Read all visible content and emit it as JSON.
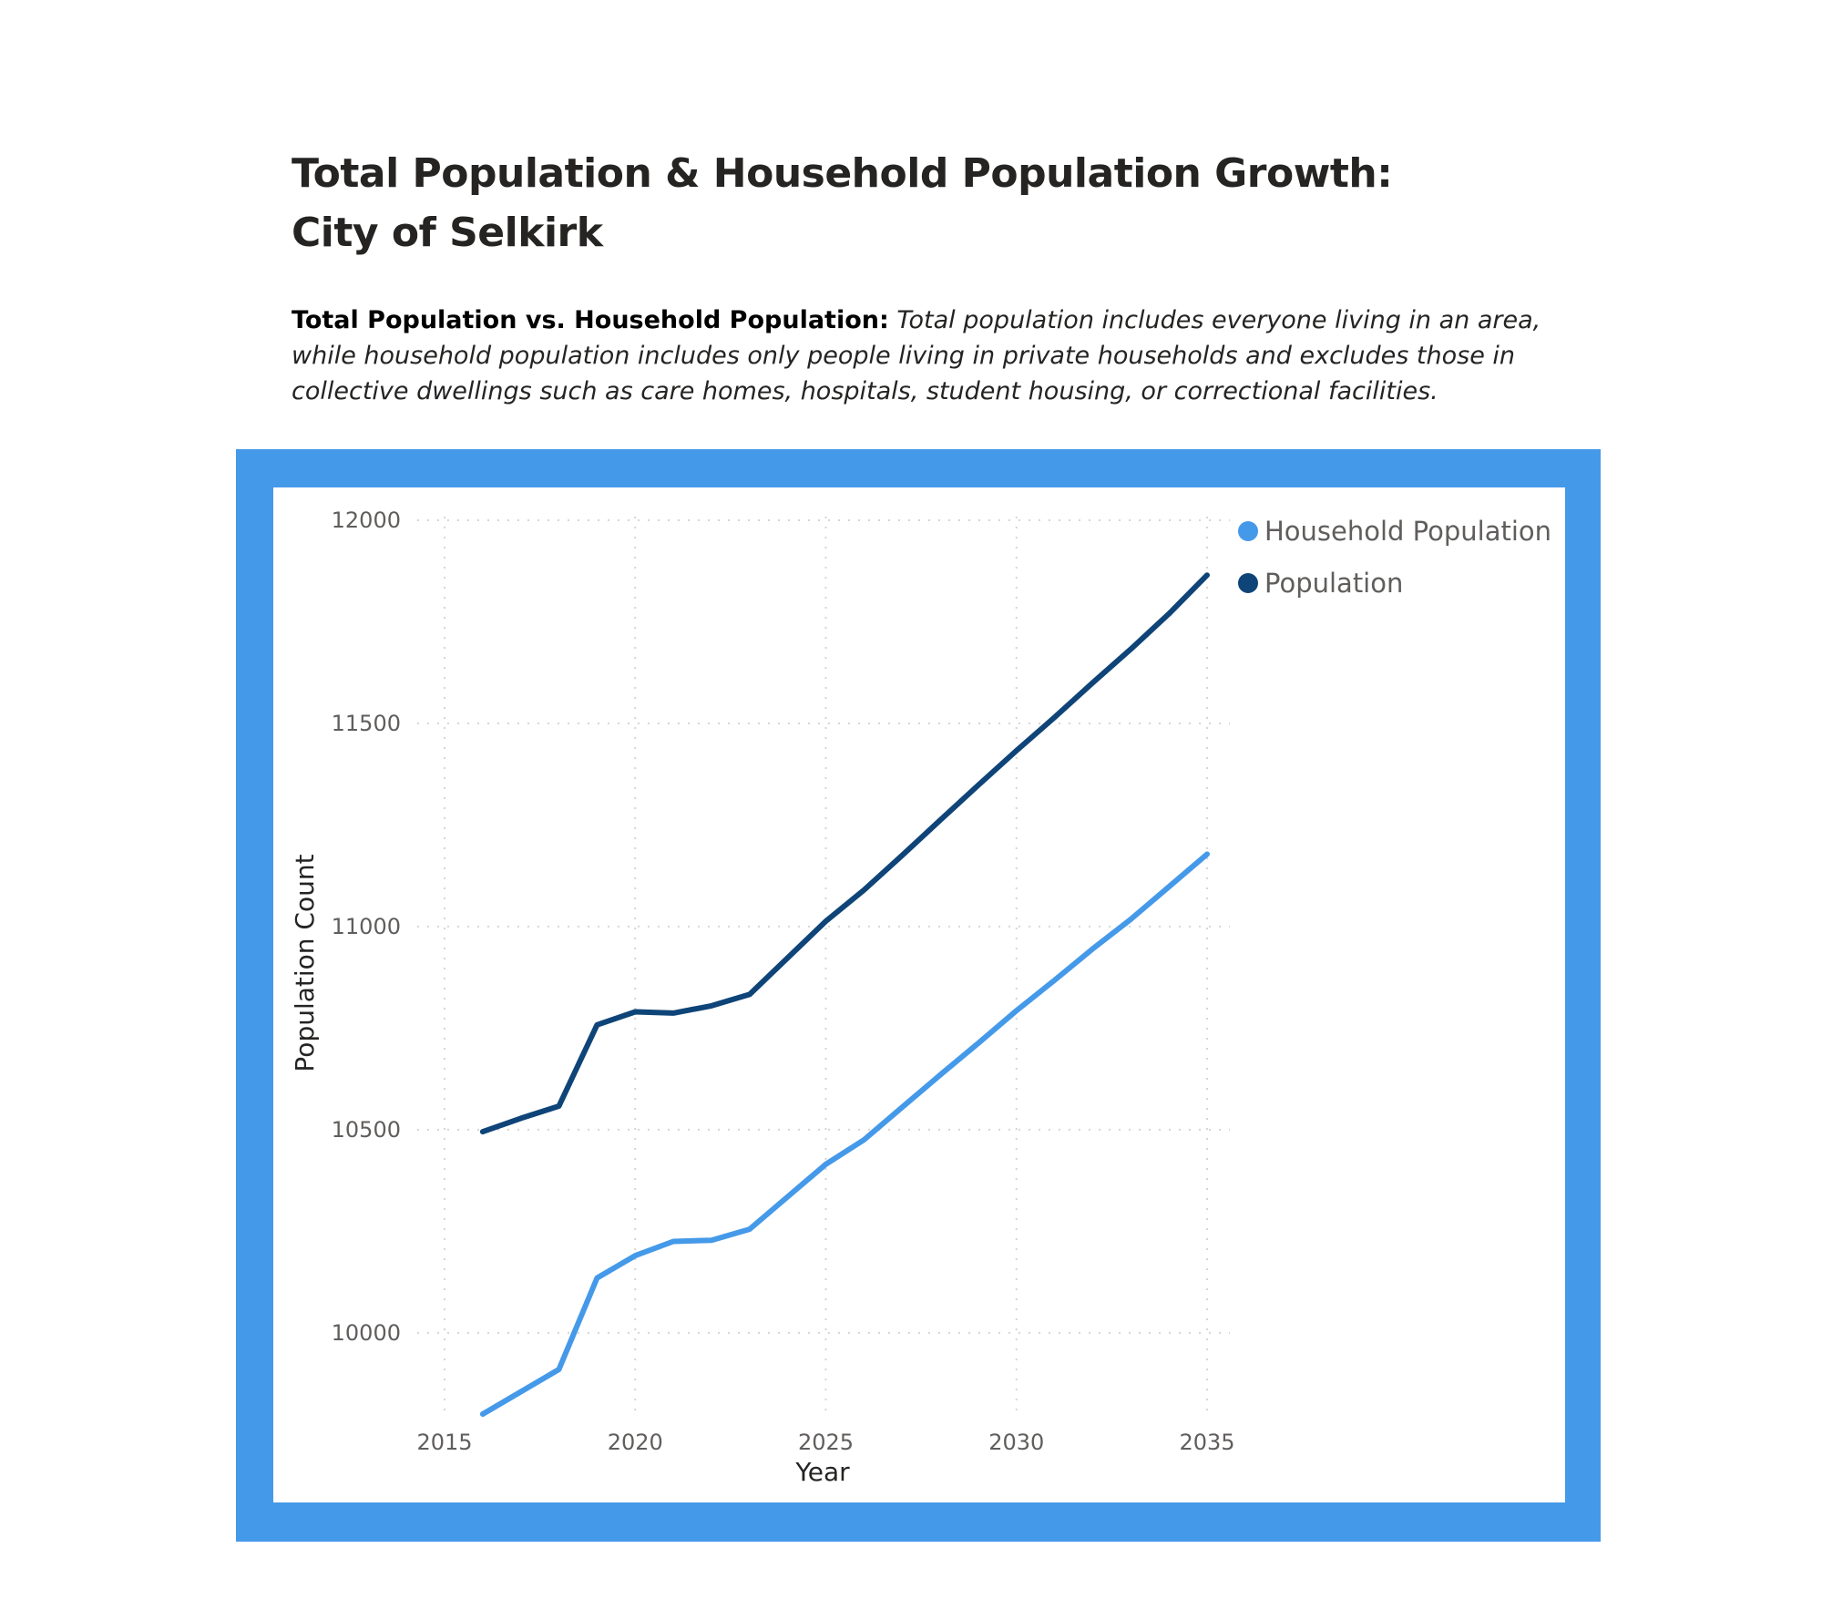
{
  "header": {
    "title_line1": "Total Population & Household Population Growth:",
    "title_line2": "City of Selkirk",
    "description_lead": "Total Population vs. Household Population:",
    "description_body": "Total population includes everyone living in an area, while household population includes only people living in private households and excludes those in collective dwellings such as care homes, hospitals, student housing, or correctional facilities."
  },
  "colors": {
    "frame": "#4599e9",
    "household_population": "#4599e9",
    "population": "#0e4478",
    "gridline": "#d6d6d6"
  },
  "chart_data": {
    "type": "line",
    "title": "",
    "xlabel": "Year",
    "ylabel": "Population Count",
    "xlim": [
      2015,
      2035
    ],
    "ylim": [
      9800,
      12000
    ],
    "x_ticks": [
      2015,
      2020,
      2025,
      2030,
      2035
    ],
    "y_ticks": [
      10000,
      10500,
      11000,
      11500,
      12000
    ],
    "grid": true,
    "legend_position": "top-right",
    "x": [
      2016,
      2017,
      2018,
      2019,
      2020,
      2021,
      2022,
      2023,
      2024,
      2025,
      2026,
      2027,
      2028,
      2029,
      2030,
      2031,
      2032,
      2033,
      2034,
      2035
    ],
    "series": [
      {
        "name": "Household Population",
        "color": "#4599e9",
        "values": [
          9800,
          9855,
          9910,
          10135,
          10190,
          10225,
          10228,
          10255,
          10335,
          10415,
          10475,
          10555,
          10635,
          10713,
          10793,
          10868,
          10945,
          11018,
          11098,
          11178
        ]
      },
      {
        "name": "Population",
        "color": "#0e4478",
        "values": [
          10495,
          10528,
          10558,
          10758,
          10790,
          10787,
          10805,
          10833,
          10923,
          11013,
          11090,
          11175,
          11262,
          11348,
          11433,
          11515,
          11600,
          11683,
          11770,
          11865
        ]
      }
    ]
  }
}
